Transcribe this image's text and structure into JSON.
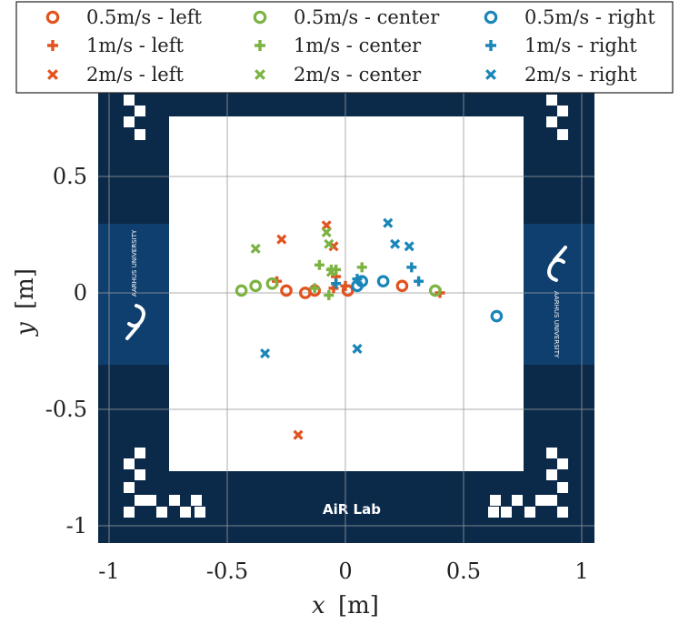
{
  "chart_data": {
    "type": "scatter",
    "xlabel": {
      "var": "x",
      "unit": "[m]"
    },
    "ylabel": {
      "var": "y",
      "unit": "[m]"
    },
    "xlim": [
      -1.05,
      1.05
    ],
    "ylim": [
      -1.05,
      0.75
    ],
    "xticks": [
      -1,
      -0.5,
      0,
      0.5,
      1
    ],
    "xtick_labels": [
      "-1",
      "-0.5",
      "0",
      "0.5",
      "1"
    ],
    "yticks": [
      -1,
      -0.5,
      0,
      0.5
    ],
    "ytick_labels": [
      "-1",
      "-0.5",
      "0",
      "0.5"
    ],
    "grid": true,
    "legend_placement": "top",
    "background_image": {
      "arena_label": "AiR Lab",
      "logo_left": "AARHUS UNIVERSITY",
      "logo_right": "AARHUS UNIVERSITY",
      "colors": {
        "frame": "#0b2a4a",
        "logo_band": "#0f3f6e",
        "floor": "#ffffff"
      }
    },
    "series": [
      {
        "name": "0.5m/s - left",
        "marker": "circle",
        "color": "#e2531f",
        "points": [
          [
            -0.25,
            0.01
          ],
          [
            -0.17,
            0.0
          ],
          [
            -0.13,
            0.01
          ],
          [
            0.01,
            0.01
          ],
          [
            0.24,
            0.03
          ]
        ]
      },
      {
        "name": "1m/s - left",
        "marker": "plus",
        "color": "#e2531f",
        "points": [
          [
            -0.29,
            0.05
          ],
          [
            -0.05,
            0.02
          ],
          [
            -0.04,
            0.07
          ],
          [
            0.0,
            0.03
          ],
          [
            0.4,
            0.0
          ]
        ]
      },
      {
        "name": "2m/s - left",
        "marker": "x",
        "color": "#e2531f",
        "points": [
          [
            -0.27,
            0.23
          ],
          [
            -0.08,
            0.29
          ],
          [
            -0.05,
            0.2
          ],
          [
            -0.2,
            -0.61
          ]
        ]
      },
      {
        "name": "0.5m/s - center",
        "marker": "circle",
        "color": "#7cb342",
        "points": [
          [
            -0.44,
            0.01
          ],
          [
            -0.38,
            0.03
          ],
          [
            -0.31,
            0.04
          ],
          [
            0.38,
            0.01
          ]
        ]
      },
      {
        "name": "1m/s - center",
        "marker": "plus",
        "color": "#7cb342",
        "points": [
          [
            -0.11,
            0.12
          ],
          [
            -0.07,
            -0.01
          ],
          [
            -0.06,
            0.1
          ],
          [
            -0.04,
            0.1
          ],
          [
            0.07,
            0.11
          ],
          [
            -0.13,
            0.02
          ]
        ]
      },
      {
        "name": "2m/s - center",
        "marker": "x",
        "color": "#7cb342",
        "points": [
          [
            -0.38,
            0.19
          ],
          [
            -0.08,
            0.26
          ],
          [
            -0.07,
            0.21
          ],
          [
            -0.06,
            0.09
          ]
        ]
      },
      {
        "name": "0.5m/s - right",
        "marker": "circle",
        "color": "#1a86b8",
        "points": [
          [
            0.05,
            0.03
          ],
          [
            0.07,
            0.05
          ],
          [
            0.16,
            0.05
          ],
          [
            0.64,
            -0.1
          ]
        ]
      },
      {
        "name": "1m/s - right",
        "marker": "plus",
        "color": "#1a86b8",
        "points": [
          [
            -0.04,
            0.04
          ],
          [
            0.05,
            0.06
          ],
          [
            0.28,
            0.11
          ],
          [
            0.31,
            0.05
          ]
        ]
      },
      {
        "name": "2m/s - right",
        "marker": "x",
        "color": "#1a86b8",
        "points": [
          [
            0.18,
            0.3
          ],
          [
            0.21,
            0.21
          ],
          [
            0.27,
            0.2
          ],
          [
            -0.34,
            -0.26
          ],
          [
            0.05,
            -0.24
          ]
        ]
      }
    ]
  }
}
